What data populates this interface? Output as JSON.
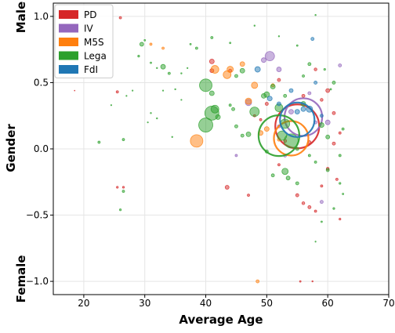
{
  "chart_data": {
    "type": "scatter",
    "title": "",
    "xlabel": "Average Age",
    "ylabel": "Gender",
    "y_side_labels": {
      "top": "Male",
      "bottom": "Female"
    },
    "xlim": [
      15,
      70
    ],
    "ylim": [
      -1.1,
      1.1
    ],
    "xticks": [
      20,
      30,
      40,
      50,
      60,
      70
    ],
    "yticks": [
      -1.0,
      -0.5,
      0.0,
      0.5,
      1.0
    ],
    "ytick_labels": [
      "−1.0",
      "−0.5",
      "0.0",
      "0.5",
      "1.0"
    ],
    "grid": true,
    "legend_position": "top-left",
    "colors": {
      "PD": "#d62728",
      "IV": "#9467bd",
      "M5S": "#ff7f0e",
      "Lega": "#2ca02c",
      "FdI": "#1f77b4"
    },
    "series": [
      {
        "name": "PD",
        "points": [
          [
            18.5,
            0.44,
            0.5
          ],
          [
            26,
            0.99,
            1.5
          ],
          [
            25.5,
            0.43,
            1.5
          ],
          [
            25.5,
            -0.29,
            1.2
          ],
          [
            26.5,
            -0.29,
            1.2
          ],
          [
            41,
            0.66,
            3
          ],
          [
            41,
            0.59,
            2.5
          ],
          [
            44,
            0.59,
            2
          ],
          [
            43.5,
            -0.29,
            2.5
          ],
          [
            47,
            -0.35,
            1.5
          ],
          [
            48,
            0.25,
            1.5
          ],
          [
            52,
            0.52,
            2
          ],
          [
            55,
            -0.35,
            2
          ],
          [
            56,
            -0.41,
            1.8
          ],
          [
            57,
            -0.44,
            2
          ],
          [
            58,
            -0.47,
            1.5
          ],
          [
            59,
            0.37,
            1.8
          ],
          [
            60,
            0.44,
            2.5
          ],
          [
            61,
            0.27,
            2
          ],
          [
            61,
            0.04,
            2
          ],
          [
            61.5,
            -0.23,
            1.5
          ],
          [
            62,
            -0.53,
            1.2
          ],
          [
            53,
            0.06,
            2
          ],
          [
            49,
            0.22,
            1.5
          ],
          [
            58,
            0.6,
            1.8
          ],
          [
            60,
            -0.15,
            1.8
          ],
          [
            55.5,
            -1.0,
            1
          ],
          [
            57.5,
            -1.0,
            0.8
          ],
          [
            52,
            -0.12,
            1.5
          ],
          [
            57,
            0.05,
            2
          ],
          [
            59,
            -0.28,
            1.5
          ],
          [
            62,
            0.12,
            1.5
          ],
          [
            50,
            0.34,
            2
          ],
          [
            56,
            0.4,
            2
          ],
          [
            55,
            0.17,
            28
          ]
        ]
      },
      {
        "name": "IV",
        "points": [
          [
            47,
            0.35,
            4
          ],
          [
            50.5,
            0.7,
            6
          ],
          [
            49.5,
            0.67,
            3
          ],
          [
            52,
            0.6,
            3
          ],
          [
            62,
            0.63,
            2
          ],
          [
            60,
            0.2,
            3
          ],
          [
            57,
            0.42,
            2
          ],
          [
            58,
            0.2,
            2
          ],
          [
            53,
            -0.05,
            2
          ],
          [
            45,
            -0.05,
            1.5
          ],
          [
            52,
            0.17,
            2
          ],
          [
            59,
            -0.4,
            2
          ],
          [
            54,
            0.28,
            3
          ],
          [
            56,
            0.24,
            24
          ]
        ]
      },
      {
        "name": "M5S",
        "points": [
          [
            38.5,
            0.06,
            8
          ],
          [
            41.5,
            0.6,
            5
          ],
          [
            43.5,
            0.56,
            5
          ],
          [
            44,
            0.6,
            4
          ],
          [
            48,
            0.48,
            4
          ],
          [
            49,
            0.12,
            3
          ],
          [
            48.5,
            -1.0,
            2
          ],
          [
            31,
            0.79,
            1.5
          ],
          [
            33,
            0.76,
            1.5
          ],
          [
            46,
            0.64,
            3
          ],
          [
            47,
            0.36,
            4
          ],
          [
            51,
            0.48,
            2
          ],
          [
            50,
            0.15,
            3
          ],
          [
            52,
            0.07,
            2
          ],
          [
            54,
            0.08,
            22
          ]
        ]
      },
      {
        "name": "Lega",
        "points": [
          [
            22.5,
            0.05,
            1.5
          ],
          [
            24.5,
            0.33,
            0.7
          ],
          [
            26.5,
            0.07,
            1.5
          ],
          [
            26.5,
            -0.32,
            1.5
          ],
          [
            26,
            -0.46,
            1.2
          ],
          [
            27,
            0.4,
            0.7
          ],
          [
            28,
            0.44,
            0.7
          ],
          [
            29.5,
            0.79,
            2.5
          ],
          [
            30,
            0.82,
            1
          ],
          [
            29,
            0.7,
            1.2
          ],
          [
            31,
            0.65,
            1
          ],
          [
            32,
            0.61,
            0.8
          ],
          [
            31,
            0.27,
            0.8
          ],
          [
            32,
            0.23,
            0.8
          ],
          [
            33,
            0.62,
            3
          ],
          [
            34,
            0.57,
            1.5
          ],
          [
            34.5,
            0.09,
            0.8
          ],
          [
            35,
            0.45,
            0.8
          ],
          [
            36,
            0.57,
            0.8
          ],
          [
            37.5,
            0.79,
            1
          ],
          [
            38.5,
            0.76,
            1.5
          ],
          [
            40,
            0.48,
            8
          ],
          [
            41.5,
            0.3,
            5
          ],
          [
            41,
            0.27,
            9
          ],
          [
            40,
            0.18,
            9
          ],
          [
            41,
            0.42,
            3
          ],
          [
            41,
            0.84,
            1.5
          ],
          [
            42,
            0.24,
            3
          ],
          [
            44.5,
            0.3,
            2
          ],
          [
            45,
            0.17,
            2
          ],
          [
            45,
            0.55,
            2
          ],
          [
            46,
            0.59,
            3
          ],
          [
            47,
            0.11,
            3
          ],
          [
            48,
            0.28,
            6
          ],
          [
            49.5,
            0.4,
            3
          ],
          [
            50,
            0.41,
            3.5
          ],
          [
            51,
            0.47,
            3
          ],
          [
            52,
            0.31,
            5
          ],
          [
            52.5,
            0.1,
            6
          ],
          [
            53,
            0.19,
            6
          ],
          [
            53,
            -0.17,
            4
          ],
          [
            53.5,
            -0.22,
            2.5
          ],
          [
            54,
            0.06,
            9
          ],
          [
            55,
            -0.26,
            2
          ],
          [
            56,
            0.34,
            3
          ],
          [
            57,
            0.64,
            2
          ],
          [
            58,
            1.01,
            0.8
          ],
          [
            59,
            0.18,
            3
          ],
          [
            60,
            0.09,
            2.5
          ],
          [
            60,
            -0.16,
            2
          ],
          [
            61,
            0.5,
            2
          ],
          [
            62,
            -0.05,
            1.5
          ],
          [
            62,
            -0.26,
            1.2
          ],
          [
            62.5,
            -0.34,
            1
          ],
          [
            61,
            -0.45,
            1.2
          ],
          [
            55,
            0.78,
            1
          ],
          [
            48,
            0.93,
            0.8
          ],
          [
            52,
            0.85,
            0.8
          ],
          [
            44,
            0.8,
            1
          ],
          [
            37,
            0.61,
            0.7
          ],
          [
            58,
            -0.7,
            0.7
          ],
          [
            59,
            -0.55,
            1
          ],
          [
            60.5,
            0.45,
            1
          ],
          [
            57,
            -0.05,
            1.5
          ],
          [
            51,
            -0.2,
            2
          ],
          [
            50,
            -0.02,
            2
          ],
          [
            55,
            0.0,
            2
          ],
          [
            58,
            -0.1,
            1.5
          ],
          [
            62.5,
            0.15,
            1.5
          ],
          [
            59.5,
            0.6,
            1.2
          ],
          [
            56,
            0.55,
            1.5
          ],
          [
            53,
            0.4,
            2
          ],
          [
            46,
            0.1,
            2
          ],
          [
            44,
            0.33,
            1.5
          ],
          [
            36,
            0.37,
            0.7
          ],
          [
            33,
            0.44,
            0.7
          ],
          [
            30.5,
            0.2,
            0.7
          ],
          [
            52,
            0.1,
            26
          ]
        ]
      },
      {
        "name": "FdI",
        "points": [
          [
            57.5,
            0.83,
            2
          ],
          [
            57,
            0.3,
            4
          ],
          [
            48.5,
            0.6,
            3.5
          ],
          [
            50.5,
            0.38,
            3
          ],
          [
            52,
            0.34,
            2.5
          ],
          [
            55,
            0.28,
            3
          ],
          [
            56,
            0.3,
            3
          ],
          [
            54,
            0.44,
            2.5
          ],
          [
            58,
            0.5,
            2
          ],
          [
            59,
            0.25,
            2
          ],
          [
            55,
            0.22,
            22
          ]
        ]
      }
    ]
  }
}
